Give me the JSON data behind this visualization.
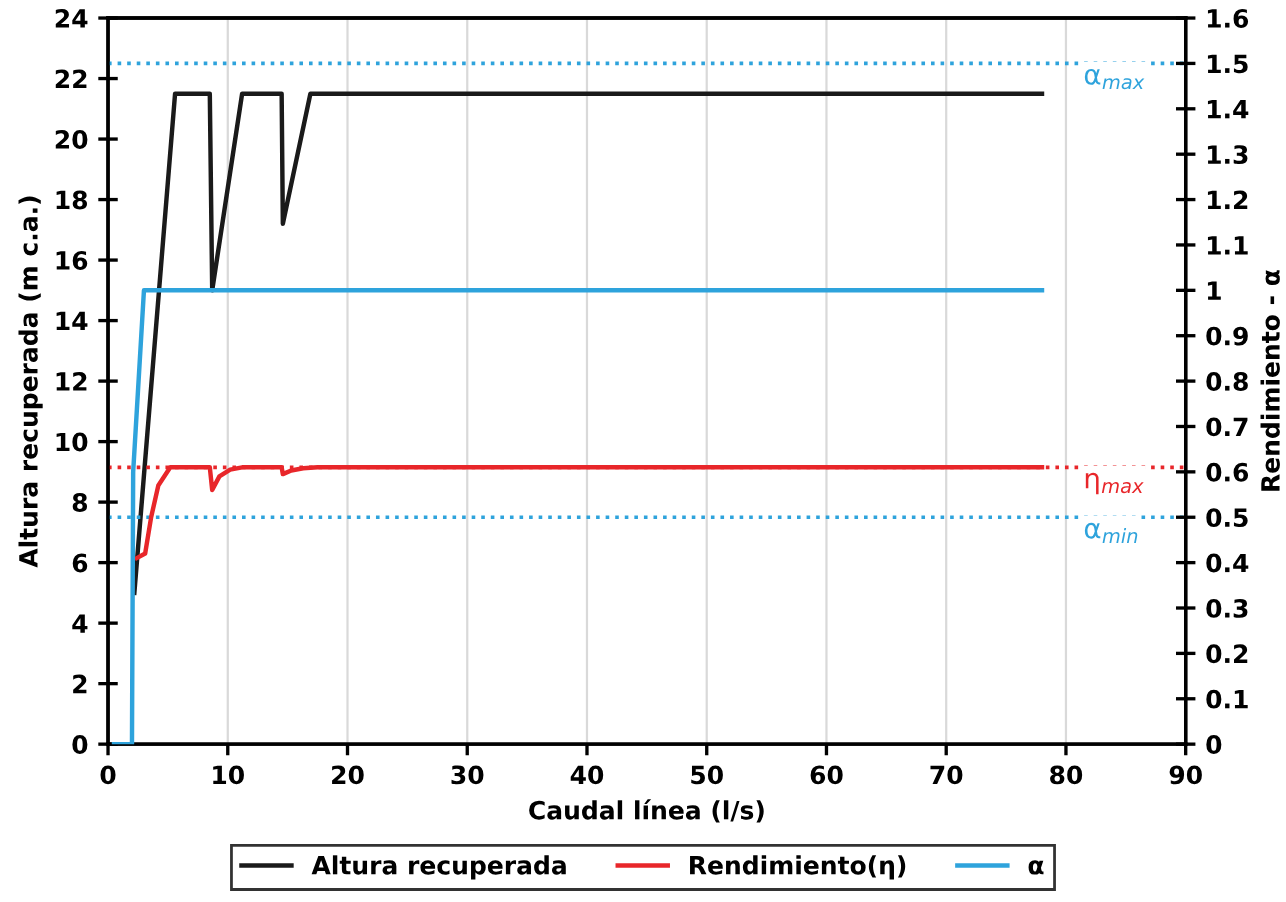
{
  "chart_data": {
    "type": "line",
    "xlabel": "Caudal línea (l/s)",
    "ylabel": "Altura recuperada (m c.a.)",
    "y2label": "Rendimiento - α",
    "xlim": [
      0,
      90
    ],
    "xticks": [
      0,
      10,
      20,
      30,
      40,
      50,
      60,
      70,
      80,
      90
    ],
    "ylim": [
      0,
      24
    ],
    "yticks": [
      0,
      2,
      4,
      6,
      8,
      10,
      12,
      14,
      16,
      18,
      20,
      22,
      24
    ],
    "y2lim": [
      0,
      1.6
    ],
    "y2ticks": [
      0,
      0.1,
      0.2,
      0.3,
      0.4,
      0.5,
      0.6,
      0.7,
      0.8,
      0.9,
      1,
      1.1,
      1.2,
      1.3,
      1.4,
      1.5,
      1.6
    ],
    "grid": "x",
    "legend": "bottom",
    "marker": "none",
    "line_style": "solid",
    "series": [
      {
        "name": "Altura recuperada",
        "color": "#1a1a1a",
        "x": [
          2.2,
          5.6,
          8.5,
          8.7,
          11.2,
          14.5,
          14.6,
          16.9,
          78
        ],
        "values": [
          5.0,
          21.5,
          21.5,
          15.0,
          21.5,
          21.5,
          17.2,
          21.5,
          21.5
        ]
      },
      {
        "name": "Rendimiento(η)",
        "color": "#e8262a",
        "axis": "y2",
        "x": [
          2.4,
          3.1,
          3.6,
          4.2,
          5.2,
          8.5,
          8.7,
          9.3,
          10.2,
          11.2,
          14.5,
          14.6,
          15.3,
          16.3,
          17.5,
          78
        ],
        "values": [
          0.41,
          0.42,
          0.5,
          0.57,
          0.61,
          0.61,
          0.56,
          0.59,
          0.605,
          0.61,
          0.61,
          0.595,
          0.603,
          0.608,
          0.61,
          0.61
        ]
      },
      {
        "name": "α",
        "color": "#2ea3dc",
        "axis": "y2",
        "x": [
          0.5,
          2.0,
          2.1,
          3.0,
          78
        ],
        "values": [
          0,
          0,
          0.6,
          1,
          1
        ]
      }
    ],
    "ref_lines": [
      {
        "axis": "y2",
        "value": 1.5,
        "label": "α$_{max}$",
        "color": "#2ea3dc",
        "line_style": "dotted"
      },
      {
        "axis": "y2",
        "value": 0.61,
        "label": "η$_{max}$",
        "color": "#e8262a",
        "line_style": "dotted"
      },
      {
        "axis": "y2",
        "value": 0.5,
        "label": "α$_{min}$",
        "color": "#2ea3dc",
        "line_style": "dotted"
      }
    ]
  }
}
